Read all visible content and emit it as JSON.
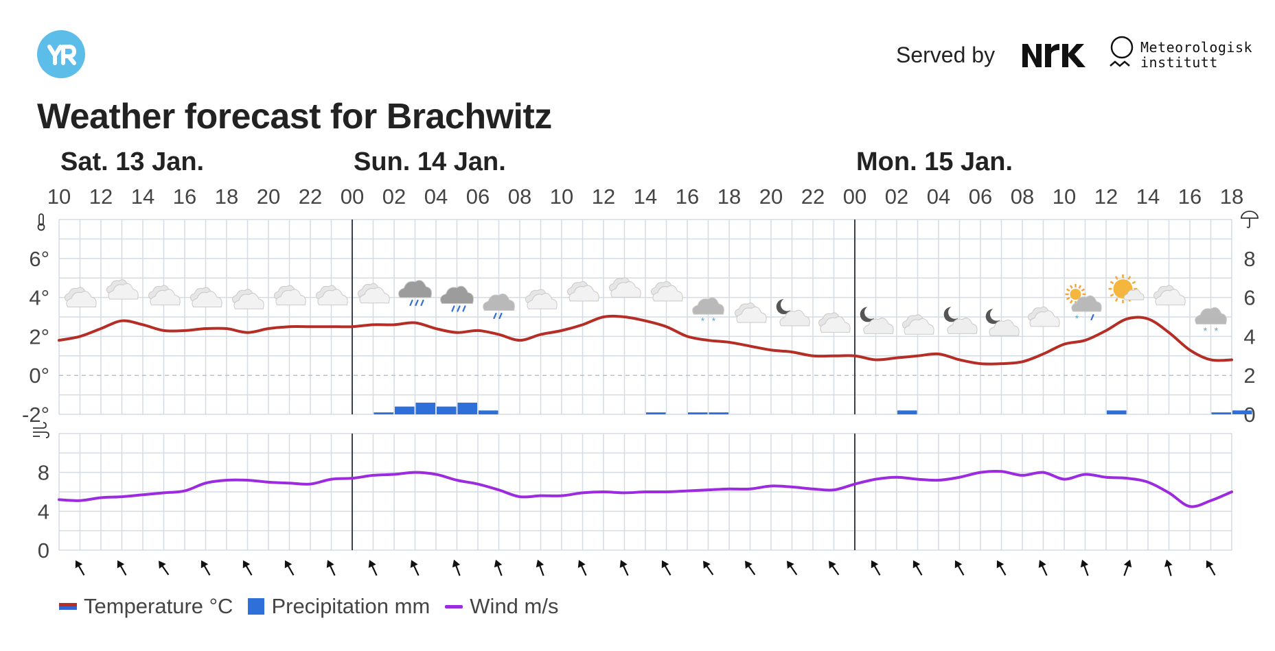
{
  "header": {
    "logo_text": "YR",
    "served_by_label": "Served by",
    "partner_logo": "NRK",
    "met_name_line1": "Meteorologisk",
    "met_name_line2": "institutt"
  },
  "title": "Weather forecast for Brachwitz",
  "legend": {
    "temperature": "Temperature °C",
    "precipitation": "Precipitation mm",
    "wind": "Wind m/s"
  },
  "colors": {
    "temperature": "#b52d25",
    "temperature_cold": "#3565d0",
    "precipitation": "#2e6fd9",
    "wind": "#9c2be0",
    "grid": "#d4dbe2",
    "day_separator": "#3b4048",
    "logo_blue": "#5bbde8"
  },
  "icons": {
    "temperature_axis": "thermometer-icon",
    "precipitation_axis": "umbrella-icon",
    "wind_axis": "wind-icon",
    "wind_direction": "arrow-icon"
  },
  "chart_data": {
    "type": "line",
    "day_labels": [
      {
        "label": "Sat. 13 Jan.",
        "start_hour": 10
      },
      {
        "label": "Sun. 14 Jan.",
        "start_hour": 24
      },
      {
        "label": "Mon. 15 Jan.",
        "start_hour": 48
      }
    ],
    "hour_ticks": [
      "10",
      "12",
      "14",
      "16",
      "18",
      "20",
      "22",
      "00",
      "02",
      "04",
      "06",
      "08",
      "10",
      "12",
      "14",
      "16",
      "18",
      "20",
      "22",
      "00",
      "02",
      "04",
      "06",
      "08",
      "10",
      "12",
      "14",
      "16",
      "18"
    ],
    "hours": [
      10,
      11,
      12,
      13,
      14,
      15,
      16,
      17,
      18,
      19,
      20,
      21,
      22,
      23,
      24,
      25,
      26,
      27,
      28,
      29,
      30,
      31,
      32,
      33,
      34,
      35,
      36,
      37,
      38,
      39,
      40,
      41,
      42,
      43,
      44,
      45,
      46,
      47,
      48,
      49,
      50,
      51,
      52,
      53,
      54,
      55,
      56,
      57,
      58,
      59,
      60,
      61,
      62,
      63,
      64,
      65,
      66
    ],
    "temperature": {
      "name": "Temperature °C",
      "ylim": [
        -2,
        8
      ],
      "yticks": [
        "6°",
        "4°",
        "2°",
        "0°",
        "-2°"
      ],
      "ytick_values": [
        6,
        4,
        2,
        0,
        -2
      ],
      "values": [
        1.8,
        2.0,
        2.4,
        2.8,
        2.6,
        2.3,
        2.3,
        2.4,
        2.4,
        2.2,
        2.4,
        2.5,
        2.5,
        2.5,
        2.5,
        2.6,
        2.6,
        2.7,
        2.4,
        2.2,
        2.3,
        2.1,
        1.8,
        2.1,
        2.3,
        2.6,
        3.0,
        3.0,
        2.8,
        2.5,
        2.0,
        1.8,
        1.7,
        1.5,
        1.3,
        1.2,
        1.0,
        1.0,
        1.0,
        0.8,
        0.9,
        1.0,
        1.1,
        0.8,
        0.6,
        0.6,
        0.7,
        1.1,
        1.6,
        1.8,
        2.3,
        2.9,
        2.9,
        2.2,
        1.3,
        0.8,
        0.8
      ]
    },
    "precipitation": {
      "name": "Precipitation mm",
      "ylim": [
        0,
        10
      ],
      "yticks": [
        "8",
        "6",
        "4",
        "2",
        "0"
      ],
      "ytick_values": [
        8,
        6,
        4,
        2,
        0
      ],
      "values": [
        0,
        0,
        0,
        0,
        0,
        0,
        0,
        0,
        0,
        0,
        0,
        0,
        0,
        0,
        0,
        0.1,
        0.4,
        0.6,
        0.4,
        0.6,
        0.2,
        0,
        0,
        0,
        0,
        0,
        0,
        0,
        0.1,
        0,
        0.1,
        0.1,
        0,
        0,
        0,
        0,
        0,
        0,
        0,
        0,
        0.2,
        0,
        0,
        0,
        0,
        0,
        0,
        0,
        0,
        0,
        0.2,
        0,
        0,
        0,
        0,
        0.1,
        0.2
      ]
    },
    "wind": {
      "name": "Wind m/s",
      "ylim": [
        0,
        12
      ],
      "yticks": [
        "8",
        "4",
        "0"
      ],
      "ytick_values": [
        8,
        4,
        0
      ],
      "values": [
        5.2,
        5.1,
        5.4,
        5.5,
        5.7,
        5.9,
        6.1,
        6.9,
        7.2,
        7.2,
        7.0,
        6.9,
        6.8,
        7.3,
        7.4,
        7.7,
        7.8,
        8.0,
        7.8,
        7.2,
        6.8,
        6.2,
        5.5,
        5.6,
        5.6,
        5.9,
        6.0,
        5.9,
        6.0,
        6.0,
        6.1,
        6.2,
        6.3,
        6.3,
        6.6,
        6.5,
        6.3,
        6.2,
        6.8,
        7.3,
        7.5,
        7.3,
        7.2,
        7.5,
        8.0,
        8.1,
        7.7,
        8.0,
        7.3,
        7.8,
        7.5,
        7.4,
        7.0,
        5.9,
        4.5,
        5.1,
        6.0
      ]
    },
    "weather_symbols": [
      {
        "hour": 11,
        "symbol": "cloudy-icon",
        "temp_pos": 3.9
      },
      {
        "hour": 13,
        "symbol": "cloudy-icon",
        "temp_pos": 4.3
      },
      {
        "hour": 15,
        "symbol": "cloudy-icon",
        "temp_pos": 4.0
      },
      {
        "hour": 17,
        "symbol": "cloudy-icon",
        "temp_pos": 3.9
      },
      {
        "hour": 19,
        "symbol": "cloudy-icon",
        "temp_pos": 3.8
      },
      {
        "hour": 21,
        "symbol": "cloudy-icon",
        "temp_pos": 4.0
      },
      {
        "hour": 23,
        "symbol": "cloudy-icon",
        "temp_pos": 4.0
      },
      {
        "hour": 25,
        "symbol": "cloudy-icon",
        "temp_pos": 4.1
      },
      {
        "hour": 27,
        "symbol": "rain-icon",
        "temp_pos": 4.2
      },
      {
        "hour": 29,
        "symbol": "rain-icon",
        "temp_pos": 3.9
      },
      {
        "hour": 31,
        "symbol": "light-rain-icon",
        "temp_pos": 3.6
      },
      {
        "hour": 33,
        "symbol": "cloudy-icon",
        "temp_pos": 3.8
      },
      {
        "hour": 35,
        "symbol": "cloudy-icon",
        "temp_pos": 4.2
      },
      {
        "hour": 37,
        "symbol": "cloudy-icon",
        "temp_pos": 4.4
      },
      {
        "hour": 39,
        "symbol": "cloudy-icon",
        "temp_pos": 4.2
      },
      {
        "hour": 41,
        "symbol": "light-snow-icon",
        "temp_pos": 3.4
      },
      {
        "hour": 43,
        "symbol": "cloudy-icon",
        "temp_pos": 3.1
      },
      {
        "hour": 45,
        "symbol": "partly-cloudy-night-icon",
        "temp_pos": 3.0
      },
      {
        "hour": 47,
        "symbol": "cloudy-icon",
        "temp_pos": 2.6
      },
      {
        "hour": 49,
        "symbol": "partly-cloudy-night-icon",
        "temp_pos": 2.6
      },
      {
        "hour": 51,
        "symbol": "cloudy-icon",
        "temp_pos": 2.5
      },
      {
        "hour": 53,
        "symbol": "partly-cloudy-night-icon",
        "temp_pos": 2.6
      },
      {
        "hour": 55,
        "symbol": "partly-cloudy-night-icon",
        "temp_pos": 2.5
      },
      {
        "hour": 57,
        "symbol": "cloudy-icon",
        "temp_pos": 2.9
      },
      {
        "hour": 59,
        "symbol": "sleet-sun-icon",
        "temp_pos": 3.6
      },
      {
        "hour": 61,
        "symbol": "partly-sunny-icon",
        "temp_pos": 4.3
      },
      {
        "hour": 63,
        "symbol": "cloudy-icon",
        "temp_pos": 4.0
      },
      {
        "hour": 65,
        "symbol": "light-snow-icon",
        "temp_pos": 2.9
      }
    ],
    "wind_direction_arrows": [
      {
        "hour": 11,
        "direction_deg": 240
      },
      {
        "hour": 13,
        "direction_deg": 240
      },
      {
        "hour": 15,
        "direction_deg": 235
      },
      {
        "hour": 17,
        "direction_deg": 240
      },
      {
        "hour": 19,
        "direction_deg": 240
      },
      {
        "hour": 21,
        "direction_deg": 240
      },
      {
        "hour": 23,
        "direction_deg": 245
      },
      {
        "hour": 25,
        "direction_deg": 245
      },
      {
        "hour": 27,
        "direction_deg": 245
      },
      {
        "hour": 29,
        "direction_deg": 250
      },
      {
        "hour": 31,
        "direction_deg": 250
      },
      {
        "hour": 33,
        "direction_deg": 250
      },
      {
        "hour": 35,
        "direction_deg": 245
      },
      {
        "hour": 37,
        "direction_deg": 245
      },
      {
        "hour": 39,
        "direction_deg": 240
      },
      {
        "hour": 41,
        "direction_deg": 235
      },
      {
        "hour": 43,
        "direction_deg": 235
      },
      {
        "hour": 45,
        "direction_deg": 235
      },
      {
        "hour": 47,
        "direction_deg": 235
      },
      {
        "hour": 49,
        "direction_deg": 240
      },
      {
        "hour": 51,
        "direction_deg": 240
      },
      {
        "hour": 53,
        "direction_deg": 240
      },
      {
        "hour": 55,
        "direction_deg": 240
      },
      {
        "hour": 57,
        "direction_deg": 245
      },
      {
        "hour": 59,
        "direction_deg": 250
      },
      {
        "hour": 61,
        "direction_deg": 290
      },
      {
        "hour": 63,
        "direction_deg": 255
      },
      {
        "hour": 65,
        "direction_deg": 240
      }
    ],
    "xlabel": "",
    "ylabel": "",
    "grid": true,
    "legend_position": "bottom-left"
  }
}
